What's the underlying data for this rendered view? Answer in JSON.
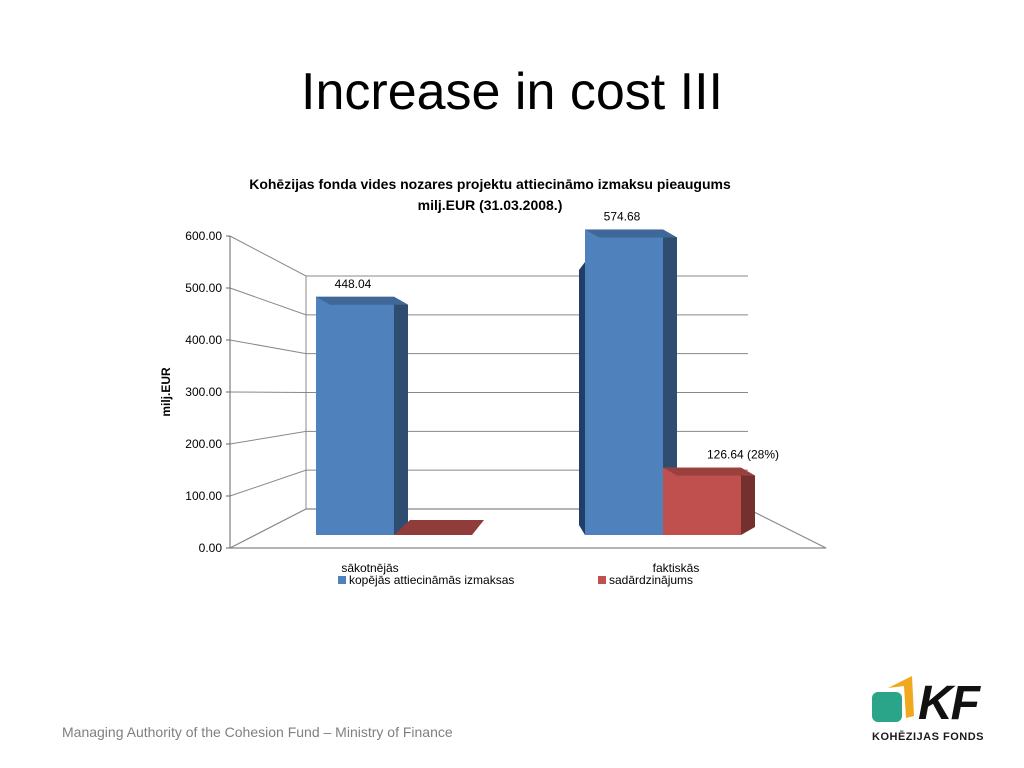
{
  "slide": {
    "title": "Increase in cost III",
    "footer": "Managing Authority of the Cohesion Fund – Ministry of Finance"
  },
  "logo": {
    "mark": "KF",
    "text": "KOHĒZIJAS FONDS",
    "colors": [
      "#2aa58a",
      "#f0a81e"
    ]
  },
  "chart_data": {
    "type": "bar",
    "title": "Kohēzijas fonda vides nozares projektu attiecināmo izmaksu pieaugums milj.EUR (31.03.2008.)",
    "title_lines": [
      "Kohēzijas fonda vides nozares projektu attiecināmo izmaksu pieaugums",
      "milj.EUR (31.03.2008.)"
    ],
    "ylabel": "milj.EUR",
    "xlabel": "",
    "ylim": [
      0,
      600
    ],
    "yticks": [
      "0.00",
      "100.00",
      "200.00",
      "300.00",
      "400.00",
      "500.00",
      "600.00"
    ],
    "categories": [
      "sākotnējās",
      "faktiskās"
    ],
    "series": [
      {
        "name": "kopējās attiecināmās izmaksas",
        "color": "#4f81bd",
        "values": [
          448.04,
          574.68
        ],
        "labels": [
          "448.04",
          "574.68"
        ]
      },
      {
        "name": "sadārdzinājums",
        "color": "#c0504d",
        "values": [
          0,
          126.64
        ],
        "labels": [
          "",
          "126.64 (28%)"
        ]
      }
    ],
    "legend": "bottom",
    "grid": true
  }
}
